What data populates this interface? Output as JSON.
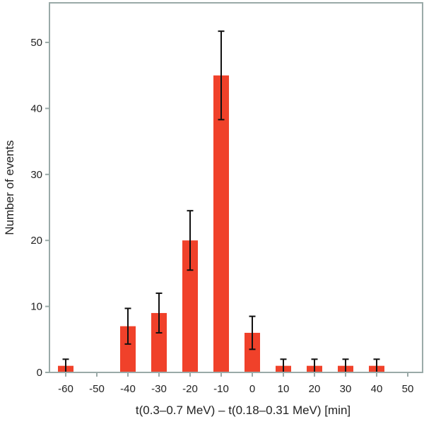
{
  "chart_data": {
    "type": "bar",
    "title": "",
    "xlabel": "t(0.3–0.7 MeV) – t(0.18–0.31 MeV)  [min]",
    "ylabel": "Number of events",
    "categories": [
      "-60",
      "-50",
      "-40",
      "-30",
      "-20",
      "-10",
      "0",
      "10",
      "20",
      "30",
      "40",
      "50"
    ],
    "values": [
      1,
      0,
      7,
      9,
      20,
      45,
      6,
      1,
      1,
      1,
      1,
      0
    ],
    "errors": [
      1,
      0,
      2.7,
      3,
      4.5,
      6.7,
      2.5,
      1,
      1,
      1,
      1,
      0
    ],
    "ylim": [
      0,
      56
    ],
    "yticks": [
      0,
      10,
      20,
      30,
      40,
      50
    ],
    "grid": false,
    "colors": {
      "bar": "#f0412a",
      "errorbar": "#111111",
      "axes": "#9aaaa8",
      "text": "#222222"
    }
  }
}
